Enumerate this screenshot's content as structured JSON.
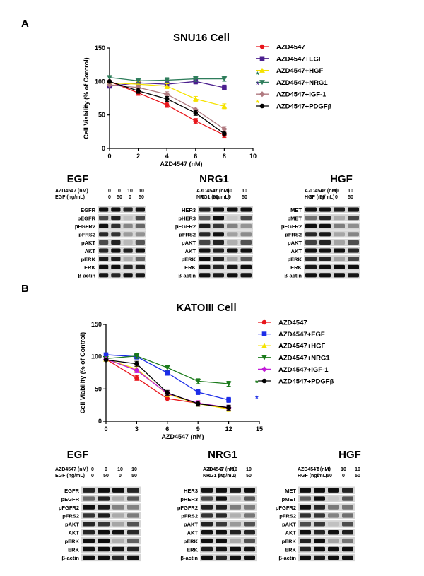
{
  "panels": [
    {
      "letter": "A",
      "chart_data": {
        "type": "line",
        "title": "SNU16 Cell",
        "xlabel": "AZD4547 (nM)",
        "ylabel": "Cell Viability (% of Control)",
        "x": [
          0,
          2,
          4,
          6,
          8
        ],
        "xticks": [
          "0",
          "2",
          "4",
          "6",
          "8",
          "10"
        ],
        "yticks": [
          "0",
          "50",
          "100",
          "150"
        ],
        "xlim": [
          0,
          10
        ],
        "ylim": [
          0,
          150
        ],
        "grid": false,
        "legend_position": "right",
        "series": [
          {
            "name": "AZD4547",
            "values": [
              100,
              83,
              65,
              41,
              20
            ],
            "color": "#e8151b",
            "marker": "circle"
          },
          {
            "name": "AZD4547+EGF",
            "values": [
              93,
              98,
              96,
              100,
              91
            ],
            "color": "#4b1f8e",
            "marker": "square"
          },
          {
            "name": "AZD4547+HGF",
            "values": [
              98,
              96,
              93,
              74,
              63
            ],
            "color": "#f5e200",
            "marker": "triangle-up"
          },
          {
            "name": "AZD4547+NRG1",
            "values": [
              106,
              101,
              102,
              104,
              104
            ],
            "color": "#2e7d5b",
            "marker": "triangle-down"
          },
          {
            "name": "AZD4547+IGF-1",
            "values": [
              95,
              91,
              81,
              58,
              29
            ],
            "color": "#b07a80",
            "marker": "diamond"
          },
          {
            "name": "AZD4547+PDGFβ",
            "values": [
              100,
              86,
              74,
              53,
              22
            ],
            "color": "#000000",
            "marker": "circle"
          }
        ],
        "significance": [
          {
            "label": "*",
            "color": "#2e7d5b"
          },
          {
            "label": "*",
            "color": "#4b1f8e"
          },
          {
            "label": "*",
            "color": "#f5e200"
          }
        ]
      },
      "blots": [
        {
          "title": "EGF",
          "cond_rows": [
            {
              "label": "AZD4547 (nM)",
              "values": [
                "0",
                "0",
                "10",
                "10"
              ]
            },
            {
              "label": "EGF (ng/mL)",
              "values": [
                "0",
                "50",
                "0",
                "50"
              ]
            }
          ],
          "rows": [
            "EGFR",
            "pEGFR",
            "pFGFR2",
            "pFRS2",
            "pAKT",
            "AKT",
            "pERK",
            "ERK",
            "β-actin"
          ]
        },
        {
          "title": "NRG1",
          "cond_rows": [
            {
              "label": "AZD4547 (nM)",
              "values": [
                "0",
                "0",
                "10",
                "10"
              ]
            },
            {
              "label": "NRG1 (ng/mL)",
              "values": [
                "0",
                "50",
                "0",
                "50"
              ]
            }
          ],
          "rows": [
            "HER3",
            "pHER3",
            "pFGFR2",
            "pFRS2",
            "pAKT",
            "AKT",
            "pERK",
            "ERK",
            "β-actin"
          ]
        },
        {
          "title": "HGF",
          "cond_rows": [
            {
              "label": "AZD4547 (nM)",
              "values": [
                "0",
                "0",
                "10",
                "10"
              ]
            },
            {
              "label": "HGF (ng/mL)",
              "values": [
                "0",
                "50",
                "0",
                "50"
              ]
            }
          ],
          "rows": [
            "MET",
            "pMET",
            "pFGFR2",
            "pFRS2",
            "pAKT",
            "AKT",
            "pERK",
            "ERK",
            "β-actin"
          ]
        }
      ]
    },
    {
      "letter": "B",
      "chart_data": {
        "type": "line",
        "title": "KATOIII Cell",
        "xlabel": "AZD4547 (nM)",
        "ylabel": "Cell Viability (% of Control)",
        "x": [
          0,
          3,
          6,
          9,
          12
        ],
        "xticks": [
          "0",
          "3",
          "6",
          "9",
          "12",
          "15"
        ],
        "yticks": [
          "0",
          "50",
          "100",
          "150"
        ],
        "xlim": [
          0,
          15
        ],
        "ylim": [
          0,
          150
        ],
        "grid": false,
        "legend_position": "right",
        "series": [
          {
            "name": "AZD4547",
            "values": [
              96,
              67,
              35,
              28,
              20
            ],
            "color": "#e8151b",
            "marker": "circle"
          },
          {
            "name": "AZD4547+EGF",
            "values": [
              103,
              100,
              75,
              45,
              33
            ],
            "color": "#1c2de8",
            "marker": "square"
          },
          {
            "name": "AZD4547+HGF",
            "values": [
              96,
              81,
              42,
              27,
              19
            ],
            "color": "#f5e200",
            "marker": "triangle-up"
          },
          {
            "name": "AZD4547+NRG1",
            "values": [
              97,
              101,
              83,
              62,
              58
            ],
            "color": "#1a7a1a",
            "marker": "triangle-down"
          },
          {
            "name": "AZD4547+IGF-1",
            "values": [
              96,
              79,
              43,
              28,
              21
            ],
            "color": "#c21bd8",
            "marker": "diamond"
          },
          {
            "name": "AZD4547+PDGFβ",
            "values": [
              95,
              89,
              44,
              27,
              21
            ],
            "color": "#000000",
            "marker": "circle"
          }
        ],
        "significance": [
          {
            "label": "*",
            "color": "#1a7a1a"
          },
          {
            "label": "*",
            "color": "#1c2de8"
          }
        ]
      },
      "blots": [
        {
          "title": "EGF",
          "cond_rows": [
            {
              "label": "AZD4547 (nM)",
              "values": [
                "0",
                "0",
                "10",
                "10"
              ]
            },
            {
              "label": "EGF (ng/mL)",
              "values": [
                "0",
                "50",
                "0",
                "50"
              ]
            }
          ],
          "rows": [
            "EGFR",
            "pEGFR",
            "pFGFR2",
            "pFRS2",
            "pAKT",
            "AKT",
            "pERK",
            "ERK",
            "β-actin"
          ]
        },
        {
          "title": "NRG1",
          "cond_rows": [
            {
              "label": "AZD4547 (nM)",
              "values": [
                "0",
                "0",
                "10",
                "10"
              ]
            },
            {
              "label": "NRG1 (ng/mL)",
              "values": [
                "0",
                "50",
                "0",
                "50"
              ]
            }
          ],
          "rows": [
            "HER3",
            "pHER3",
            "pFGFR2",
            "pFRS2",
            "pAKT",
            "AKT",
            "pERK",
            "ERK",
            "β-actin"
          ]
        },
        {
          "title": "HGF",
          "cond_rows": [
            {
              "label": "AZD4547 (nM)",
              "values": [
                "0",
                "0",
                "10",
                "10"
              ]
            },
            {
              "label": "HGF (ng/mL)",
              "values": [
                "0",
                "50",
                "0",
                "50"
              ]
            }
          ],
          "rows": [
            "MET",
            "pMET",
            "pFGFR2",
            "pFRS2",
            "pAKT",
            "AKT",
            "pERK",
            "ERK",
            "β-actin"
          ]
        }
      ]
    }
  ]
}
